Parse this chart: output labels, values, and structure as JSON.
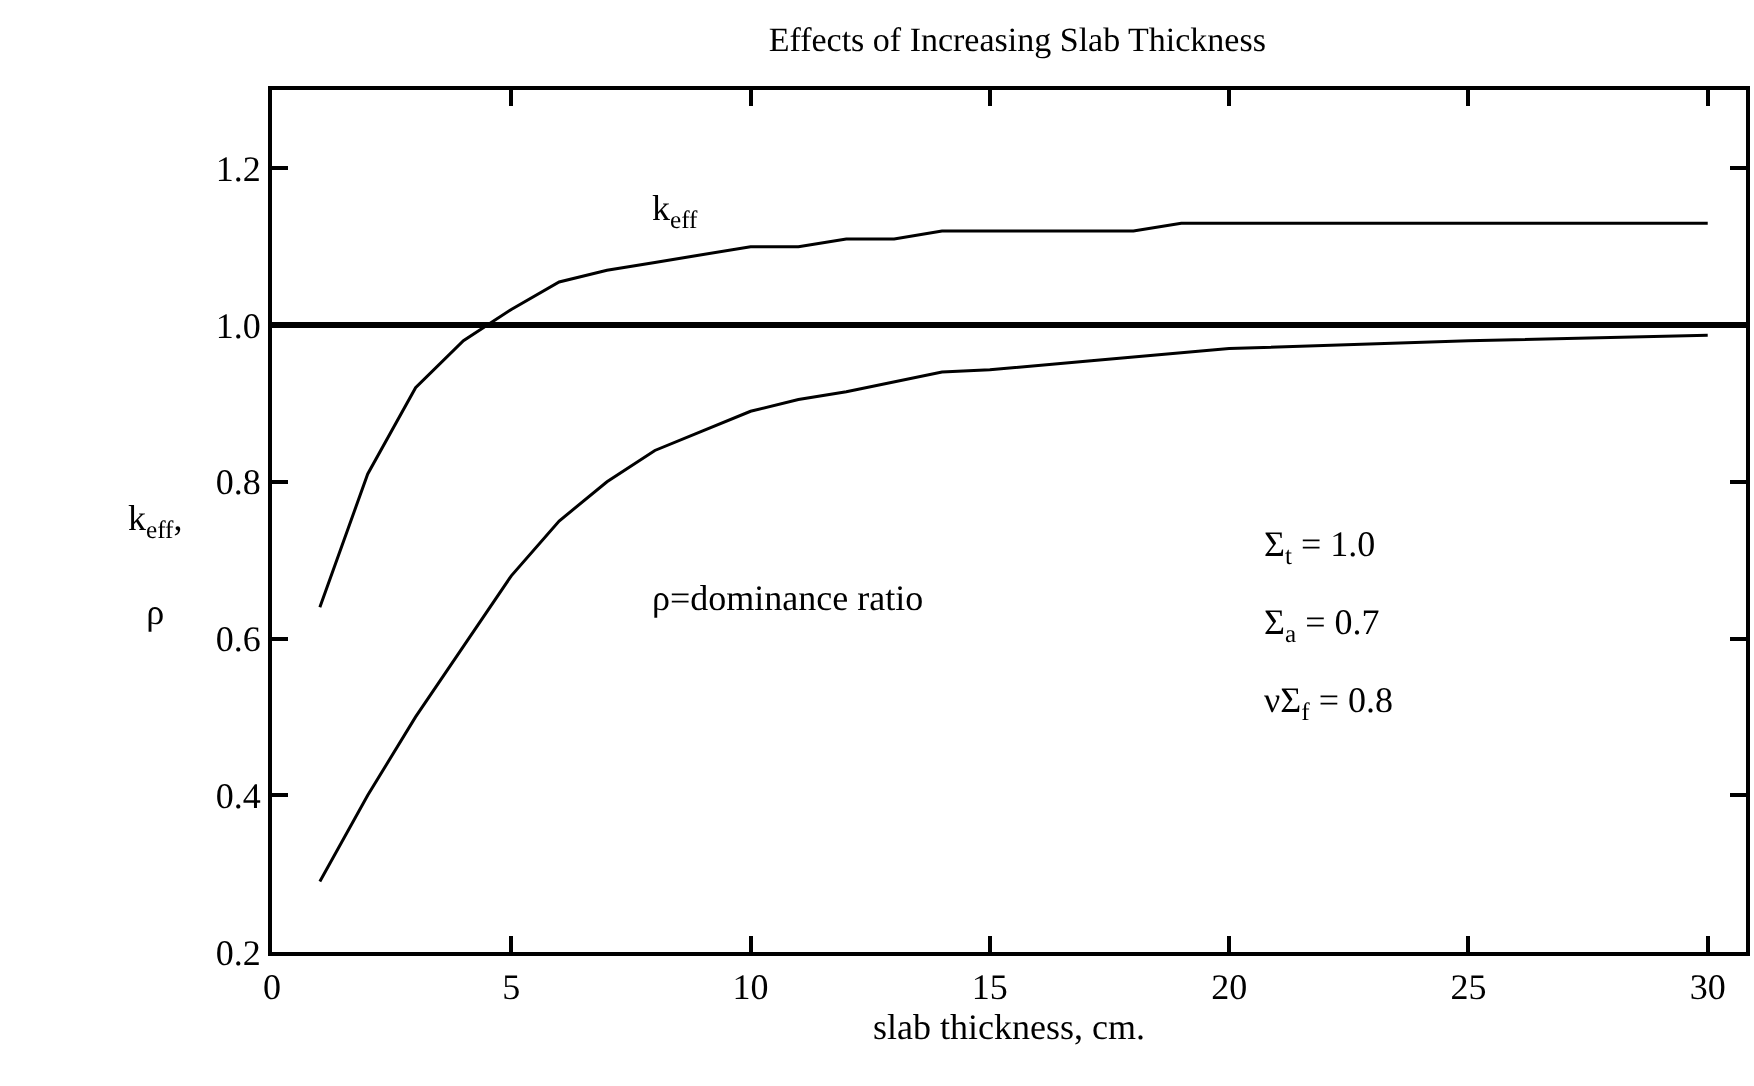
{
  "chart_data": {
    "type": "line",
    "title": "Effects of Increasing Slab Thickness",
    "xlabel": "slab thickness, cm.",
    "ylabel": "k$_{eff}$,\nρ",
    "series": [
      {
        "color": "#000000",
        "x": [
          1,
          2,
          3,
          4,
          5,
          6,
          7,
          8,
          10,
          11,
          12,
          13,
          14,
          18,
          19,
          30
        ],
        "values": [
          0.64,
          0.81,
          0.92,
          0.98,
          1.02,
          1.055,
          1.07,
          1.08,
          1.1,
          1.1,
          1.11,
          1.11,
          1.12,
          1.12,
          1.13,
          1.13
        ]
      },
      {
        "color": "#000000",
        "x": [
          1,
          2,
          3,
          4,
          5,
          6,
          7,
          8,
          9,
          10,
          11,
          12,
          14,
          15,
          17,
          20,
          25,
          30
        ],
        "values": [
          0.29,
          0.4,
          0.5,
          0.59,
          0.68,
          0.75,
          0.8,
          0.84,
          0.865,
          0.89,
          0.905,
          0.915,
          0.94,
          0.943,
          0.954,
          0.97,
          0.98,
          0.987
        ]
      }
    ],
    "annotations": [
      "k$_{eff}$",
      "ρ=dominance ratio",
      "Σ$_{t}$ = 1.0",
      "Σ$_{a}$ = 0.7",
      "νΣ$_{f}$ = 0.8"
    ],
    "ref_lines": [
      {
        "axis": "y",
        "value": 1.0,
        "color": "#000000"
      }
    ],
    "xlim": [
      0,
      30.8
    ],
    "ylim": [
      0.2,
      1.3
    ],
    "xticks": [
      0,
      5,
      10,
      15,
      20,
      25,
      30
    ],
    "yticks": [
      {
        "value": 0.2,
        "label": "0.2"
      },
      {
        "value": 0.4,
        "label": "0.4"
      },
      {
        "value": 0.6,
        "label": "0.6"
      },
      {
        "value": 0.8,
        "label": "0.8"
      },
      {
        "value": 1.0,
        "label": "1.0"
      },
      {
        "value": 1.2,
        "label": "1.2"
      }
    ],
    "marker": "none",
    "line_style": "solid"
  }
}
